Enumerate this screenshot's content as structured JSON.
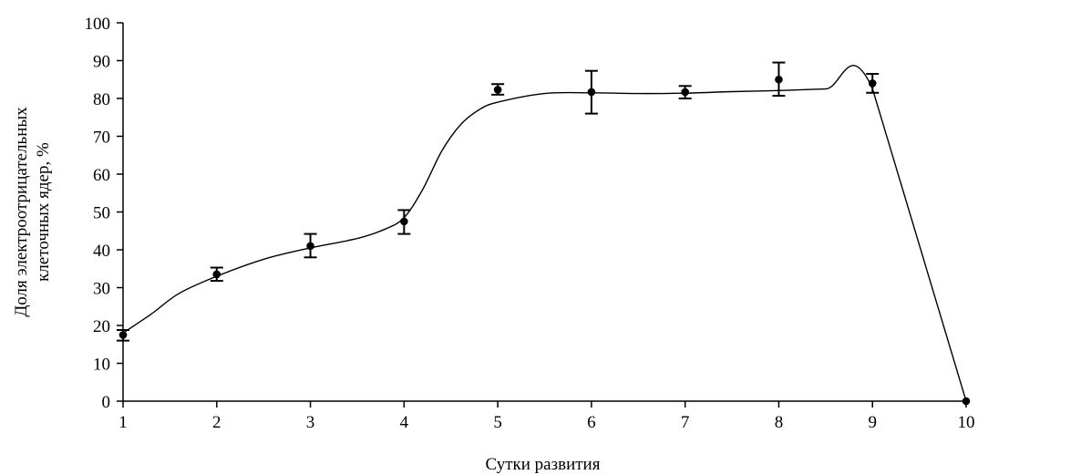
{
  "chart_data": {
    "type": "line",
    "title": "",
    "xlabel": "Сутки развития",
    "ylabel_lines": [
      "Доля электроотрицательных",
      "клеточных ядер, %"
    ],
    "x_ticks": [
      "1",
      "2",
      "3",
      "4",
      "5",
      "6",
      "7",
      "8",
      "9",
      "10"
    ],
    "y_ticks": [
      "0",
      "10",
      "20",
      "30",
      "40",
      "50",
      "60",
      "70",
      "80",
      "90",
      "100"
    ],
    "xlim": [
      1,
      10
    ],
    "ylim": [
      0,
      100
    ],
    "grid": false,
    "legend": "none",
    "series": [
      {
        "marker": "circle",
        "color": "#000000",
        "points": [
          {
            "x": 1,
            "y": 17.5,
            "err_low": 16.0,
            "err_high": 18.8
          },
          {
            "x": 2,
            "y": 33.5,
            "err_low": 31.8,
            "err_high": 35.3
          },
          {
            "x": 3,
            "y": 41.0,
            "err_low": 38.0,
            "err_high": 44.2
          },
          {
            "x": 4,
            "y": 47.5,
            "err_low": 44.2,
            "err_high": 50.5
          },
          {
            "x": 5,
            "y": 82.3,
            "err_low": 81.0,
            "err_high": 83.8
          },
          {
            "x": 6,
            "y": 81.7,
            "err_low": 76.0,
            "err_high": 87.3
          },
          {
            "x": 7,
            "y": 81.7,
            "err_low": 80.0,
            "err_high": 83.3
          },
          {
            "x": 8,
            "y": 85.0,
            "err_low": 80.7,
            "err_high": 89.5
          },
          {
            "x": 9,
            "y": 84.0,
            "err_low": 81.5,
            "err_high": 86.5
          },
          {
            "x": 10,
            "y": 0,
            "err_low": 0,
            "err_high": 0
          }
        ]
      }
    ],
    "trend_curve": [
      [
        1,
        18
      ],
      [
        1.3,
        23
      ],
      [
        1.6,
        28.5
      ],
      [
        2,
        33
      ],
      [
        2.5,
        37.5
      ],
      [
        3,
        40.5
      ],
      [
        3.5,
        43
      ],
      [
        3.8,
        45.5
      ],
      [
        4,
        48.5
      ],
      [
        4.2,
        56
      ],
      [
        4.4,
        66
      ],
      [
        4.6,
        73
      ],
      [
        4.8,
        77
      ],
      [
        5,
        79
      ],
      [
        5.5,
        81.3
      ],
      [
        6,
        81.5
      ],
      [
        6.5,
        81.3
      ],
      [
        7,
        81.4
      ],
      [
        7.5,
        81.8
      ],
      [
        8,
        82.1
      ],
      [
        8.5,
        82.5
      ],
      [
        9,
        82.6
      ],
      [
        10,
        0
      ]
    ]
  }
}
